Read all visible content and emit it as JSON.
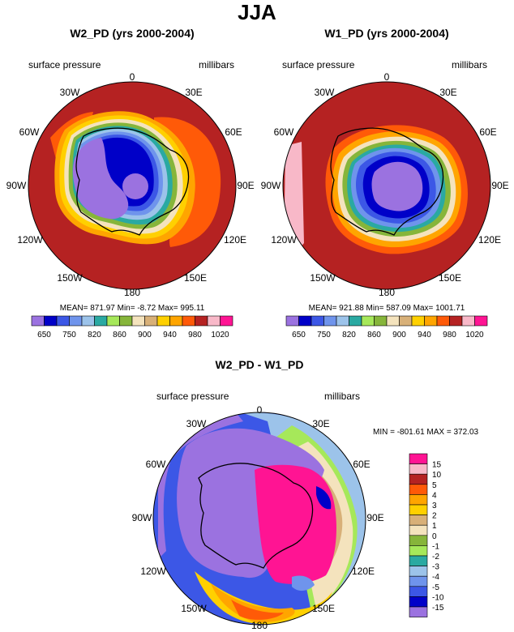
{
  "main_title": "JJA",
  "colors": {
    "c650": "#9b72e0",
    "c700": "#0000c8",
    "c750": "#3c57e6",
    "c800": "#6f94ec",
    "c820": "#9cc3ea",
    "c840": "#2aa9a2",
    "c860": "#a6e85a",
    "c880": "#86b53a",
    "c900": "#f4e3bd",
    "c920": "#d8b078",
    "c940": "#ffd000",
    "c960": "#ffa500",
    "c980": "#ff5a08",
    "c1000": "#b52222",
    "c1020": "#f8b8c8",
    "cmax": "#ff1493"
  },
  "chart_data": [
    {
      "type": "heatmap",
      "title": "W2_PD (yrs 2000-2004)",
      "variable": "surface pressure",
      "units": "millibars",
      "projection": "polar stereographic (south pole)",
      "lon_labels": [
        "0",
        "30E",
        "60E",
        "90E",
        "120E",
        "150E",
        "180",
        "150W",
        "120W",
        "90W",
        "60W",
        "30W"
      ],
      "stats": "MEAN= 871.97  Min=  -8.72  Max= 995.11",
      "colorbar_labels": [
        "650",
        "750",
        "820",
        "860",
        "900",
        "940",
        "980",
        "1020"
      ],
      "levels": [
        650,
        700,
        750,
        800,
        820,
        840,
        860,
        880,
        900,
        920,
        940,
        960,
        980,
        1000,
        1020
      ]
    },
    {
      "type": "heatmap",
      "title": "W1_PD (yrs 2000-2004)",
      "variable": "surface pressure",
      "units": "millibars",
      "projection": "polar stereographic (south pole)",
      "lon_labels": [
        "0",
        "30E",
        "60E",
        "90E",
        "120E",
        "150E",
        "180",
        "150W",
        "120W",
        "90W",
        "60W",
        "30W"
      ],
      "stats": "MEAN= 921.88  Min= 587.09  Max= 1001.71",
      "colorbar_labels": [
        "650",
        "750",
        "820",
        "860",
        "900",
        "940",
        "980",
        "1020"
      ],
      "levels": [
        650,
        700,
        750,
        800,
        820,
        840,
        860,
        880,
        900,
        920,
        940,
        960,
        980,
        1000,
        1020
      ]
    },
    {
      "type": "heatmap",
      "title": "W2_PD - W1_PD",
      "variable": "surface pressure",
      "units": "millibars",
      "projection": "polar stereographic (south pole)",
      "lon_labels": [
        "0",
        "30E",
        "60E",
        "90E",
        "120E",
        "150E",
        "180",
        "150W",
        "120W",
        "90W",
        "60W",
        "30W"
      ],
      "stats": "MIN = -801.61 MAX = 372.03",
      "colorbar_labels": [
        "15",
        "10",
        "5",
        "4",
        "3",
        "2",
        "1",
        "0",
        "-1",
        "-2",
        "-3",
        "-4",
        "-5",
        "-10",
        "-15"
      ],
      "levels": [
        15,
        10,
        5,
        4,
        3,
        2,
        1,
        0,
        -1,
        -2,
        -3,
        -4,
        -5,
        -10,
        -15
      ]
    }
  ]
}
